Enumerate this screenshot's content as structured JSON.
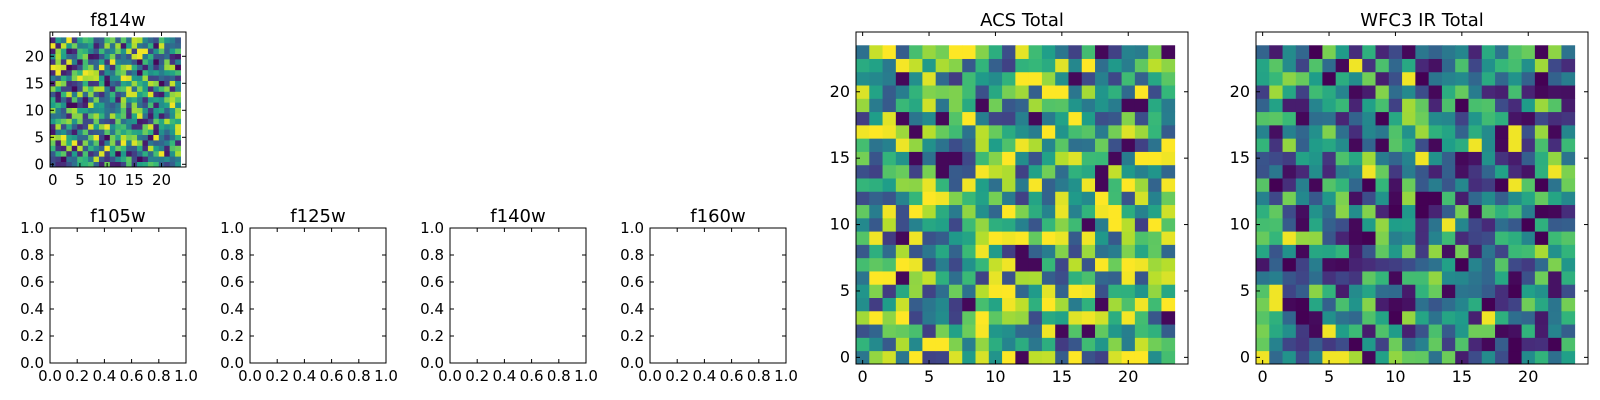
{
  "chart_data": [
    {
      "type": "heatmap",
      "title": "f814w",
      "grid_size": 24,
      "xlim": [
        -0.5,
        24.5
      ],
      "ylim": [
        -0.5,
        24.5
      ],
      "xticks": [
        "0",
        "5",
        "10",
        "15",
        "20"
      ],
      "yticks": [
        "0",
        "5",
        "10",
        "15",
        "20"
      ],
      "colormap": "viridis",
      "values_seed": 11,
      "value_range": [
        0,
        1
      ]
    },
    {
      "type": "scatter",
      "title": "f105w",
      "xlim": [
        0,
        1
      ],
      "ylim": [
        0,
        1
      ],
      "xticks": [
        "0.0",
        "0.2",
        "0.4",
        "0.6",
        "0.8",
        "1.0"
      ],
      "yticks": [
        "0.0",
        "0.2",
        "0.4",
        "0.6",
        "0.8",
        "1.0"
      ],
      "points": []
    },
    {
      "type": "scatter",
      "title": "f125w",
      "xlim": [
        0,
        1
      ],
      "ylim": [
        0,
        1
      ],
      "xticks": [
        "0.0",
        "0.2",
        "0.4",
        "0.6",
        "0.8",
        "1.0"
      ],
      "yticks": [
        "0.0",
        "0.2",
        "0.4",
        "0.6",
        "0.8",
        "1.0"
      ],
      "points": []
    },
    {
      "type": "scatter",
      "title": "f140w",
      "xlim": [
        0,
        1
      ],
      "ylim": [
        0,
        1
      ],
      "xticks": [
        "0.0",
        "0.2",
        "0.4",
        "0.6",
        "0.8",
        "1.0"
      ],
      "yticks": [
        "0.0",
        "0.2",
        "0.4",
        "0.6",
        "0.8",
        "1.0"
      ],
      "points": []
    },
    {
      "type": "scatter",
      "title": "f160w",
      "xlim": [
        0,
        1
      ],
      "ylim": [
        0,
        1
      ],
      "xticks": [
        "0.0",
        "0.2",
        "0.4",
        "0.6",
        "0.8",
        "1.0"
      ],
      "yticks": [
        "0.0",
        "0.2",
        "0.4",
        "0.6",
        "0.8",
        "1.0"
      ],
      "points": []
    },
    {
      "type": "heatmap",
      "title": "ACS Total",
      "grid_size": 24,
      "xlim": [
        -0.5,
        24.5
      ],
      "ylim": [
        -0.5,
        24.5
      ],
      "xticks": [
        "0",
        "5",
        "10",
        "15",
        "20"
      ],
      "yticks": [
        "0",
        "5",
        "10",
        "15",
        "20"
      ],
      "colormap": "viridis",
      "values_seed": 29,
      "value_range": [
        0,
        1
      ],
      "value_bias": 0.62
    },
    {
      "type": "heatmap",
      "title": "WFC3 IR Total",
      "grid_size": 24,
      "xlim": [
        -0.5,
        24.5
      ],
      "ylim": [
        -0.5,
        24.5
      ],
      "xticks": [
        "0",
        "5",
        "10",
        "15",
        "20"
      ],
      "yticks": [
        "0",
        "5",
        "10",
        "15",
        "20"
      ],
      "colormap": "viridis",
      "values_seed": 47,
      "value_range": [
        0,
        1
      ],
      "value_bias": 0.42
    }
  ]
}
